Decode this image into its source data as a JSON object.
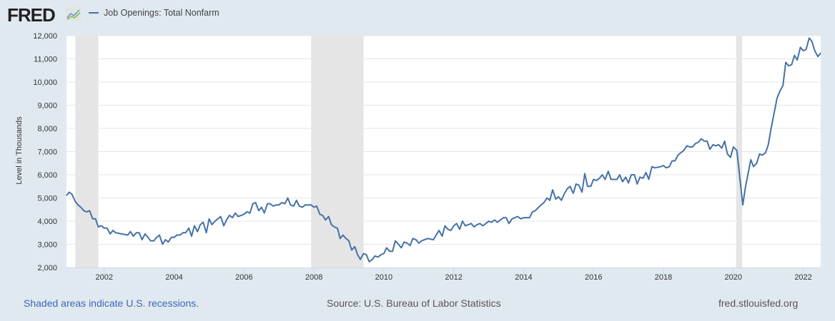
{
  "header": {
    "logo_text": "FRED",
    "legend_label": "Job Openings: Total Nonfarm"
  },
  "footer": {
    "recession_note": "Shaded areas indicate U.S. recessions.",
    "source": "Source: U.S. Bureau of Labor Statistics",
    "site": "fred.stlouisfed.org"
  },
  "colors": {
    "line": "#4572a7",
    "recession": "#e5e5e5",
    "link": "#3a68b4"
  },
  "chart_data": {
    "type": "line",
    "title": "Job Openings: Total Nonfarm",
    "xlabel": "",
    "ylabel": "Level in Thousands",
    "xlim": [
      2000.92,
      2022.5
    ],
    "ylim": [
      2000,
      12000
    ],
    "grid": true,
    "legend_placement": "top-left",
    "x_ticks": [
      2002,
      2004,
      2006,
      2008,
      2010,
      2012,
      2014,
      2016,
      2018,
      2020,
      2022
    ],
    "x_tick_labels": [
      "2002",
      "2004",
      "2006",
      "2008",
      "2010",
      "2012",
      "2014",
      "2016",
      "2018",
      "2020",
      "2022"
    ],
    "y_ticks": [
      2000,
      3000,
      4000,
      5000,
      6000,
      7000,
      8000,
      9000,
      10000,
      11000,
      12000
    ],
    "y_tick_labels": [
      "2,000",
      "3,000",
      "4,000",
      "5,000",
      "6,000",
      "7,000",
      "8,000",
      "9,000",
      "10,000",
      "11,000",
      "12,000"
    ],
    "recessions": [
      [
        2001.17,
        2001.83
      ],
      [
        2007.92,
        2009.42
      ],
      [
        2020.08,
        2020.25
      ]
    ],
    "series": [
      {
        "name": "Job Openings: Total Nonfarm",
        "points": [
          [
            2000.92,
            5100
          ],
          [
            2001.0,
            5250
          ],
          [
            2001.08,
            5150
          ],
          [
            2001.17,
            4850
          ],
          [
            2001.25,
            4700
          ],
          [
            2001.33,
            4600
          ],
          [
            2001.42,
            4450
          ],
          [
            2001.5,
            4400
          ],
          [
            2001.58,
            4450
          ],
          [
            2001.67,
            4100
          ],
          [
            2001.75,
            4100
          ],
          [
            2001.83,
            3750
          ],
          [
            2001.92,
            3800
          ],
          [
            2002.0,
            3700
          ],
          [
            2002.08,
            3700
          ],
          [
            2002.17,
            3450
          ],
          [
            2002.25,
            3600
          ],
          [
            2002.33,
            3500
          ],
          [
            2002.5,
            3450
          ],
          [
            2002.67,
            3400
          ],
          [
            2002.75,
            3550
          ],
          [
            2002.83,
            3350
          ],
          [
            2002.92,
            3500
          ],
          [
            2003.0,
            3500
          ],
          [
            2003.08,
            3200
          ],
          [
            2003.17,
            3450
          ],
          [
            2003.25,
            3300
          ],
          [
            2003.33,
            3150
          ],
          [
            2003.42,
            3150
          ],
          [
            2003.5,
            3300
          ],
          [
            2003.58,
            3400
          ],
          [
            2003.67,
            3000
          ],
          [
            2003.75,
            3200
          ],
          [
            2003.83,
            3100
          ],
          [
            2003.92,
            3300
          ],
          [
            2004.0,
            3300
          ],
          [
            2004.08,
            3400
          ],
          [
            2004.17,
            3400
          ],
          [
            2004.25,
            3500
          ],
          [
            2004.33,
            3500
          ],
          [
            2004.42,
            3700
          ],
          [
            2004.5,
            3350
          ],
          [
            2004.58,
            3800
          ],
          [
            2004.67,
            3550
          ],
          [
            2004.75,
            3850
          ],
          [
            2004.83,
            3950
          ],
          [
            2004.92,
            3500
          ],
          [
            2005.0,
            4100
          ],
          [
            2005.08,
            3850
          ],
          [
            2005.17,
            4000
          ],
          [
            2005.25,
            4100
          ],
          [
            2005.33,
            4200
          ],
          [
            2005.42,
            3800
          ],
          [
            2005.5,
            4050
          ],
          [
            2005.58,
            4250
          ],
          [
            2005.67,
            4150
          ],
          [
            2005.75,
            4350
          ],
          [
            2005.83,
            4200
          ],
          [
            2005.92,
            4250
          ],
          [
            2006.0,
            4300
          ],
          [
            2006.08,
            4400
          ],
          [
            2006.17,
            4350
          ],
          [
            2006.25,
            4750
          ],
          [
            2006.33,
            4800
          ],
          [
            2006.42,
            4450
          ],
          [
            2006.5,
            4600
          ],
          [
            2006.58,
            4350
          ],
          [
            2006.67,
            4750
          ],
          [
            2006.75,
            4750
          ],
          [
            2006.83,
            4650
          ],
          [
            2006.92,
            4700
          ],
          [
            2007.0,
            4700
          ],
          [
            2007.08,
            4800
          ],
          [
            2007.17,
            4750
          ],
          [
            2007.25,
            5000
          ],
          [
            2007.33,
            4700
          ],
          [
            2007.42,
            4650
          ],
          [
            2007.5,
            4900
          ],
          [
            2007.58,
            4650
          ],
          [
            2007.67,
            4600
          ],
          [
            2007.75,
            4700
          ],
          [
            2007.83,
            4700
          ],
          [
            2007.92,
            4700
          ],
          [
            2008.0,
            4600
          ],
          [
            2008.08,
            4650
          ],
          [
            2008.17,
            4300
          ],
          [
            2008.25,
            4250
          ],
          [
            2008.33,
            4050
          ],
          [
            2008.42,
            4200
          ],
          [
            2008.5,
            3850
          ],
          [
            2008.58,
            3750
          ],
          [
            2008.67,
            3700
          ],
          [
            2008.75,
            3250
          ],
          [
            2008.83,
            3400
          ],
          [
            2008.92,
            3250
          ],
          [
            2009.0,
            3150
          ],
          [
            2009.08,
            2750
          ],
          [
            2009.17,
            2900
          ],
          [
            2009.25,
            2550
          ],
          [
            2009.33,
            2350
          ],
          [
            2009.42,
            2600
          ],
          [
            2009.5,
            2550
          ],
          [
            2009.58,
            2250
          ],
          [
            2009.67,
            2350
          ],
          [
            2009.75,
            2500
          ],
          [
            2009.83,
            2450
          ],
          [
            2009.92,
            2550
          ],
          [
            2010.0,
            2600
          ],
          [
            2010.08,
            2850
          ],
          [
            2010.17,
            2700
          ],
          [
            2010.25,
            2700
          ],
          [
            2010.33,
            3150
          ],
          [
            2010.42,
            3000
          ],
          [
            2010.5,
            2850
          ],
          [
            2010.58,
            3100
          ],
          [
            2010.67,
            3050
          ],
          [
            2010.75,
            2950
          ],
          [
            2010.83,
            3250
          ],
          [
            2010.92,
            3200
          ],
          [
            2011.0,
            3050
          ],
          [
            2011.08,
            3150
          ],
          [
            2011.25,
            3250
          ],
          [
            2011.42,
            3200
          ],
          [
            2011.5,
            3400
          ],
          [
            2011.58,
            3600
          ],
          [
            2011.67,
            3350
          ],
          [
            2011.75,
            3800
          ],
          [
            2011.83,
            3650
          ],
          [
            2011.92,
            3600
          ],
          [
            2012.0,
            3800
          ],
          [
            2012.08,
            3900
          ],
          [
            2012.17,
            3650
          ],
          [
            2012.25,
            4000
          ],
          [
            2012.33,
            3800
          ],
          [
            2012.42,
            3850
          ],
          [
            2012.5,
            3900
          ],
          [
            2012.58,
            3750
          ],
          [
            2012.67,
            3850
          ],
          [
            2012.75,
            3900
          ],
          [
            2012.83,
            3800
          ],
          [
            2012.92,
            3900
          ],
          [
            2013.0,
            4000
          ],
          [
            2013.08,
            3950
          ],
          [
            2013.17,
            4050
          ],
          [
            2013.25,
            3950
          ],
          [
            2013.42,
            4150
          ],
          [
            2013.5,
            4150
          ],
          [
            2013.58,
            3900
          ],
          [
            2013.67,
            4100
          ],
          [
            2013.75,
            4150
          ],
          [
            2013.83,
            4200
          ],
          [
            2013.92,
            4100
          ],
          [
            2014.0,
            4150
          ],
          [
            2014.17,
            4150
          ],
          [
            2014.25,
            4400
          ],
          [
            2014.33,
            4450
          ],
          [
            2014.5,
            4700
          ],
          [
            2014.58,
            4800
          ],
          [
            2014.67,
            5000
          ],
          [
            2014.75,
            4900
          ],
          [
            2014.83,
            5350
          ],
          [
            2014.92,
            4950
          ],
          [
            2015.0,
            5050
          ],
          [
            2015.08,
            4900
          ],
          [
            2015.17,
            5200
          ],
          [
            2015.25,
            5400
          ],
          [
            2015.33,
            5500
          ],
          [
            2015.42,
            5200
          ],
          [
            2015.5,
            5600
          ],
          [
            2015.58,
            5550
          ],
          [
            2015.67,
            5250
          ],
          [
            2015.75,
            6050
          ],
          [
            2015.83,
            5500
          ],
          [
            2015.92,
            5500
          ],
          [
            2016.0,
            5800
          ],
          [
            2016.08,
            5750
          ],
          [
            2016.17,
            5850
          ],
          [
            2016.25,
            6000
          ],
          [
            2016.33,
            5800
          ],
          [
            2016.42,
            6150
          ],
          [
            2016.5,
            5800
          ],
          [
            2016.67,
            5800
          ],
          [
            2016.75,
            6000
          ],
          [
            2016.83,
            5700
          ],
          [
            2016.92,
            5900
          ],
          [
            2017.0,
            5650
          ],
          [
            2017.08,
            6000
          ],
          [
            2017.17,
            6000
          ],
          [
            2017.25,
            5600
          ],
          [
            2017.33,
            5900
          ],
          [
            2017.42,
            5850
          ],
          [
            2017.5,
            6100
          ],
          [
            2017.58,
            5800
          ],
          [
            2017.67,
            6350
          ],
          [
            2017.75,
            6300
          ],
          [
            2017.92,
            6350
          ],
          [
            2018.0,
            6400
          ],
          [
            2018.08,
            6300
          ],
          [
            2018.17,
            6350
          ],
          [
            2018.25,
            6600
          ],
          [
            2018.33,
            6600
          ],
          [
            2018.42,
            6850
          ],
          [
            2018.5,
            6950
          ],
          [
            2018.58,
            7050
          ],
          [
            2018.67,
            7250
          ],
          [
            2018.75,
            7200
          ],
          [
            2018.83,
            7200
          ],
          [
            2018.92,
            7350
          ],
          [
            2019.0,
            7400
          ],
          [
            2019.08,
            7550
          ],
          [
            2019.17,
            7450
          ],
          [
            2019.25,
            7450
          ],
          [
            2019.33,
            7100
          ],
          [
            2019.42,
            7300
          ],
          [
            2019.5,
            7250
          ],
          [
            2019.58,
            7300
          ],
          [
            2019.67,
            7150
          ],
          [
            2019.75,
            7450
          ],
          [
            2019.83,
            6900
          ],
          [
            2019.92,
            6750
          ],
          [
            2020.0,
            7200
          ],
          [
            2020.1,
            7050
          ],
          [
            2020.27,
            4700
          ],
          [
            2020.35,
            5500
          ],
          [
            2020.5,
            6650
          ],
          [
            2020.58,
            6350
          ],
          [
            2020.67,
            6500
          ],
          [
            2020.75,
            6900
          ],
          [
            2020.83,
            6850
          ],
          [
            2020.92,
            6950
          ],
          [
            2021.0,
            7300
          ],
          [
            2021.08,
            8000
          ],
          [
            2021.25,
            9300
          ],
          [
            2021.33,
            9600
          ],
          [
            2021.42,
            9850
          ],
          [
            2021.5,
            10850
          ],
          [
            2021.58,
            10700
          ],
          [
            2021.67,
            10750
          ],
          [
            2021.75,
            11150
          ],
          [
            2021.83,
            10950
          ],
          [
            2021.92,
            11500
          ],
          [
            2022.0,
            11350
          ],
          [
            2022.08,
            11400
          ],
          [
            2022.17,
            11900
          ],
          [
            2022.25,
            11750
          ],
          [
            2022.33,
            11350
          ],
          [
            2022.42,
            11100
          ],
          [
            2022.5,
            11250
          ]
        ]
      }
    ]
  }
}
